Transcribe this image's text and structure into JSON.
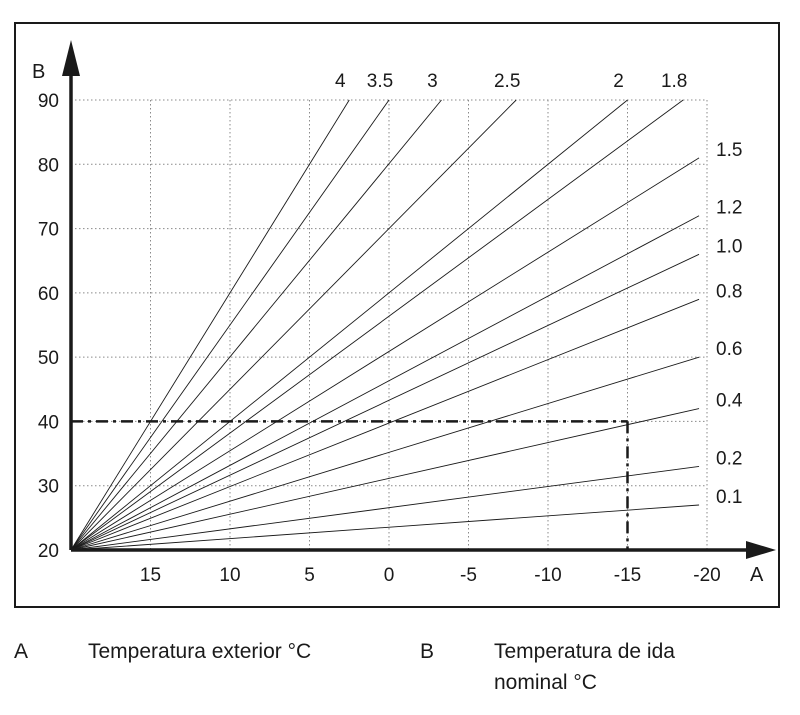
{
  "chart_data": {
    "type": "line",
    "x_axis": {
      "letter": "A",
      "ticks": [
        15,
        10,
        5,
        0,
        -5,
        -10,
        -15,
        -20
      ],
      "tick_labels": [
        "15",
        "10",
        "5",
        "0",
        "-5",
        "-10",
        "-15",
        "-20"
      ],
      "range": [
        20,
        -20
      ],
      "reversed": true
    },
    "y_axis": {
      "letter": "B",
      "ticks": [
        20,
        30,
        40,
        50,
        60,
        70,
        80,
        90
      ],
      "tick_labels": [
        "20",
        "30",
        "40",
        "50",
        "60",
        "70",
        "80",
        "90"
      ],
      "range": [
        20,
        90
      ]
    },
    "grid": true,
    "series": [
      {
        "name": "4",
        "x": [
          20,
          2.5
        ],
        "y": [
          20,
          90
        ]
      },
      {
        "name": "3.5",
        "x": [
          20,
          0
        ],
        "y": [
          20,
          90
        ]
      },
      {
        "name": "3",
        "x": [
          20,
          -3.3
        ],
        "y": [
          20,
          90
        ]
      },
      {
        "name": "2.5",
        "x": [
          20,
          -8
        ],
        "y": [
          20,
          90
        ]
      },
      {
        "name": "2",
        "x": [
          20,
          -15
        ],
        "y": [
          20,
          90
        ]
      },
      {
        "name": "1.8",
        "x": [
          20,
          -18.5
        ],
        "y": [
          20,
          90
        ]
      },
      {
        "name": "1.5",
        "x": [
          20,
          -19.5
        ],
        "y": [
          20,
          81
        ]
      },
      {
        "name": "1.2",
        "x": [
          20,
          -19.5
        ],
        "y": [
          20,
          72
        ]
      },
      {
        "name": "1.0",
        "x": [
          20,
          -19.5
        ],
        "y": [
          20,
          66
        ]
      },
      {
        "name": "0.8",
        "x": [
          20,
          -19.5
        ],
        "y": [
          20,
          59
        ]
      },
      {
        "name": "0.6",
        "x": [
          20,
          -19.5
        ],
        "y": [
          20,
          50
        ]
      },
      {
        "name": "0.4",
        "x": [
          20,
          -19.5
        ],
        "y": [
          20,
          42
        ]
      },
      {
        "name": "0.2",
        "x": [
          20,
          -19.5
        ],
        "y": [
          20,
          33
        ]
      },
      {
        "name": "0.1",
        "x": [
          20,
          -19.5
        ],
        "y": [
          20,
          27
        ]
      }
    ],
    "example_reading": {
      "x": -15,
      "y": 40,
      "style": "dash-dot"
    }
  },
  "legend": [
    {
      "letter": "A",
      "text": "Temperatura exterior °C"
    },
    {
      "letter": "B",
      "text_line1": "Temperatura de ida",
      "text_line2": "nominal °C"
    }
  ]
}
